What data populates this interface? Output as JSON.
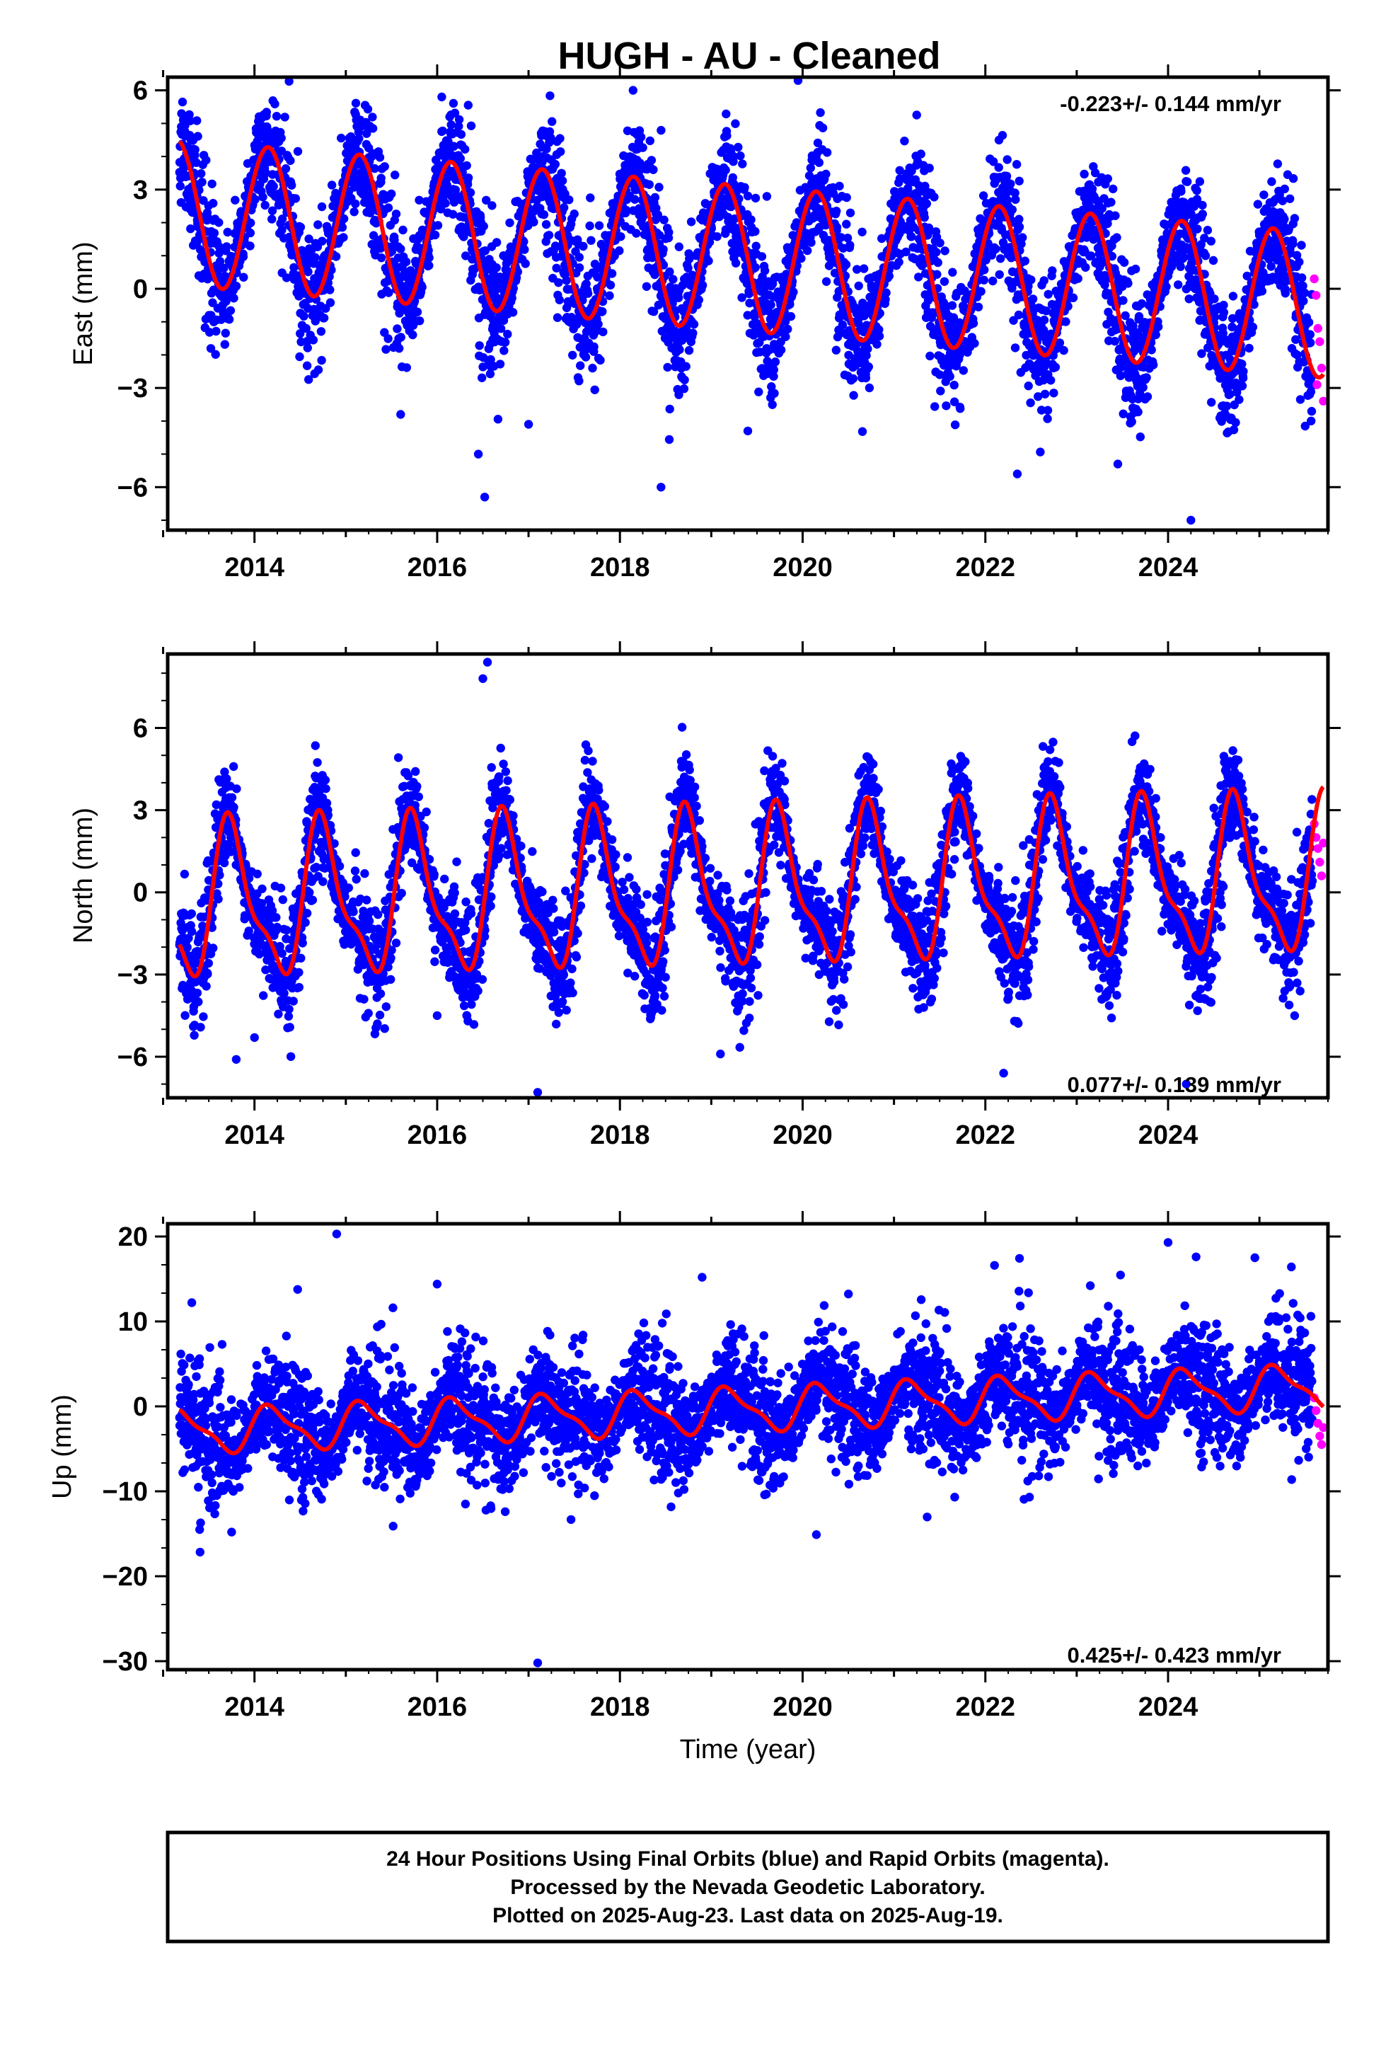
{
  "chart_data": {
    "title": "HUGH  - AU - Cleaned",
    "xlabel": "Time (year)",
    "x_ticks": [
      2014,
      2016,
      2018,
      2020,
      2022,
      2024
    ],
    "xlim": [
      2013.05,
      2025.75
    ],
    "colors": {
      "final": "#0000ff",
      "rapid": "#ff00ff",
      "model": "#ff0000"
    },
    "panels": [
      {
        "type": "scatter",
        "ylabel": "East (mm)",
        "ylim": [
          -7.3,
          6.4
        ],
        "y_ticks": [
          6,
          3,
          0,
          -3,
          -6
        ],
        "y_tick_labels": [
          "6",
          "3",
          "0",
          "−3",
          "−6"
        ],
        "rate": "-0.223+/- 0.144 mm/yr",
        "rate_position": "top-right",
        "model": {
          "offset": 1.0,
          "trend": -0.223,
          "annual_amp": 2.2,
          "annual_phase": 0.9,
          "semi_amp": 0.0,
          "semi_phase": 0.0,
          "noise": 0.9
        },
        "outliers": [
          [
            2016.52,
            -6.3
          ],
          [
            2016.45,
            -5.0
          ],
          [
            2018.45,
            -6.0
          ],
          [
            2019.95,
            6.3
          ],
          [
            2016.05,
            5.8
          ],
          [
            2022.35,
            -5.6
          ],
          [
            2024.25,
            -7.0
          ],
          [
            2023.45,
            -5.3
          ],
          [
            2015.6,
            -3.8
          ],
          [
            2017.0,
            -4.1
          ],
          [
            2019.4,
            -4.3
          ]
        ],
        "rapid": [
          [
            2025.6,
            0.3
          ],
          [
            2025.62,
            -0.2
          ],
          [
            2025.64,
            -1.2
          ],
          [
            2025.66,
            -1.6
          ],
          [
            2025.68,
            -2.4
          ],
          [
            2025.7,
            -3.4
          ],
          [
            2025.63,
            -2.9
          ]
        ]
      },
      {
        "type": "scatter",
        "ylabel": "North (mm)",
        "ylim": [
          -7.5,
          8.7
        ],
        "y_ticks": [
          6,
          3,
          0,
          -3,
          -6
        ],
        "y_tick_labels": [
          "6",
          "3",
          "0",
          "−3",
          "−6"
        ],
        "rate": "0.077+/- 0.139 mm/yr",
        "rate_position": "bottom-right",
        "model": {
          "offset": 0.0,
          "trend": 0.077,
          "annual_amp": 2.6,
          "annual_phase": 0.5,
          "semi_amp": 0.9,
          "semi_phase": 0.55,
          "noise": 0.9
        },
        "outliers": [
          [
            2016.55,
            8.4
          ],
          [
            2016.5,
            7.8
          ],
          [
            2017.1,
            -7.3
          ],
          [
            2022.2,
            -6.6
          ],
          [
            2013.8,
            -6.1
          ],
          [
            2024.2,
            -7.0
          ],
          [
            2016.0,
            -4.5
          ],
          [
            2014.0,
            -5.3
          ],
          [
            2019.1,
            -5.9
          ]
        ],
        "rapid": [
          [
            2025.6,
            2.5
          ],
          [
            2025.62,
            2.0
          ],
          [
            2025.64,
            1.6
          ],
          [
            2025.66,
            1.1
          ],
          [
            2025.68,
            0.6
          ],
          [
            2025.7,
            1.8
          ]
        ]
      },
      {
        "type": "scatter",
        "ylabel": "Up (mm)",
        "ylim": [
          -31.0,
          21.5
        ],
        "y_ticks": [
          20,
          10,
          0,
          -10,
          -20,
          -30
        ],
        "y_tick_labels": [
          "20",
          "10",
          "0",
          "−10",
          "−20",
          "−30"
        ],
        "rate": "0.425+/- 0.423 mm/yr",
        "rate_position": "bottom-right",
        "model": {
          "offset": -0.5,
          "trend": 0.425,
          "annual_amp": 2.4,
          "annual_phase": 0.95,
          "semi_amp": 0.8,
          "semi_phase": 0.45,
          "noise": 3.2
        },
        "outliers": [
          [
            2017.1,
            -30.2
          ],
          [
            2014.9,
            20.3
          ],
          [
            2024.0,
            19.3
          ],
          [
            2020.15,
            -15.1
          ],
          [
            2013.4,
            -14.5
          ],
          [
            2016.0,
            14.4
          ],
          [
            2022.1,
            16.6
          ],
          [
            2024.95,
            17.5
          ],
          [
            2018.9,
            15.2
          ],
          [
            2013.75,
            -14.8
          ]
        ],
        "rapid": [
          [
            2025.6,
            1.0
          ],
          [
            2025.62,
            -0.5
          ],
          [
            2025.64,
            -2.0
          ],
          [
            2025.66,
            -3.5
          ],
          [
            2025.68,
            -4.5
          ],
          [
            2025.7,
            -2.5
          ]
        ]
      }
    ],
    "data_span": [
      2013.18,
      2025.58
    ]
  },
  "footer": {
    "line1": "24 Hour Positions Using Final Orbits (blue) and Rapid Orbits (magenta).",
    "line2": "Processed by the Nevada Geodetic Laboratory.",
    "line3": "Plotted on 2025-Aug-23. Last data on 2025-Aug-19."
  }
}
